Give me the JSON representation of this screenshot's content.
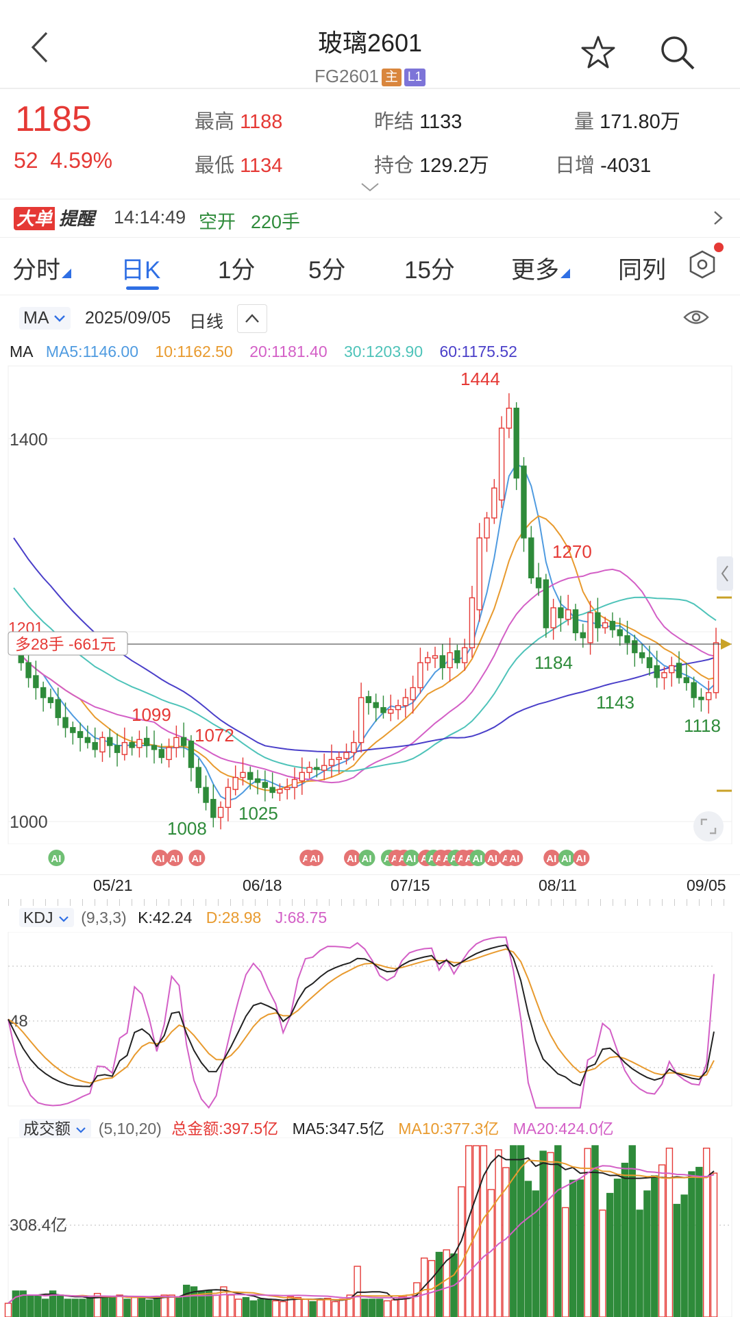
{
  "header": {
    "title": "玻璃2601",
    "code": "FG2601",
    "badge_main": "主",
    "badge_level": "L1"
  },
  "quote": {
    "price": "1185",
    "change": "52",
    "change_pct": "4.59%",
    "high_label": "最高",
    "high": "1188",
    "low_label": "最低",
    "low": "1134",
    "prev_settle_label": "昨结",
    "prev_settle": "1133",
    "open_interest_label": "持仓",
    "open_interest": "129.2万",
    "volume_label": "量",
    "volume": "171.80万",
    "daily_change_label": "日增",
    "daily_change": "-4031"
  },
  "alert": {
    "tag_a": "大单",
    "tag_b": "提醒",
    "time": "14:14:49",
    "action": "空开",
    "qty": "220手"
  },
  "tabs": [
    "分时",
    "日K",
    "1分",
    "5分",
    "15分",
    "更多",
    "同列"
  ],
  "active_tab": "日K",
  "kline_header": {
    "indicator": "MA",
    "date": "2025/09/05",
    "period": "日线"
  },
  "ma_legend": {
    "label": "MA",
    "ma5": "MA5:1146.00",
    "ma10": "10:1162.50",
    "ma20": "20:1181.40",
    "ma30": "30:1203.90",
    "ma60": "60:1175.52"
  },
  "colors": {
    "up": "#e53935",
    "down": "#2e8b3a",
    "ma5": "#4f9be0",
    "ma10": "#e89a2e",
    "ma20": "#d35fc6",
    "ma30": "#4ec3b9",
    "ma60": "#4a3fc9",
    "accent": "#2f6fe4"
  },
  "chart_data": [
    {
      "type": "candlestick",
      "title": "",
      "y_ticks": [
        "1400",
        "1200",
        "1000"
      ],
      "ylim": [
        990,
        1450
      ],
      "x_ticks": [
        "05/21",
        "06/18",
        "07/15",
        "08/11",
        "09/05"
      ],
      "annotations": {
        "peak": "1444",
        "p1270": "1270",
        "p1184": "1184",
        "p1143": "1143",
        "p1118": "1118",
        "p1099": "1099",
        "p1072": "1072",
        "p1008": "1008",
        "p1025": "1025",
        "p1201": "1201"
      },
      "position_label": "多28手 -661元",
      "closes": [
        1180,
        1165,
        1150,
        1140,
        1130,
        1125,
        1110,
        1100,
        1095,
        1090,
        1085,
        1078,
        1090,
        1082,
        1075,
        1085,
        1080,
        1088,
        1082,
        1078,
        1070,
        1080,
        1090,
        1082,
        1060,
        1040,
        1025,
        1010,
        1020,
        1040,
        1050,
        1055,
        1048,
        1045,
        1040,
        1035,
        1038,
        1040,
        1048,
        1055,
        1060,
        1058,
        1062,
        1068,
        1070,
        1075,
        1085,
        1130,
        1125,
        1120,
        1115,
        1118,
        1122,
        1130,
        1140,
        1165,
        1170,
        1172,
        1160,
        1175,
        1165,
        1180,
        1230,
        1290,
        1310,
        1340,
        1400,
        1420,
        1350,
        1290,
        1250,
        1240,
        1200,
        1220,
        1210,
        1218,
        1195,
        1190,
        1215,
        1200,
        1205,
        1198,
        1192,
        1185,
        1175,
        1170,
        1160,
        1150,
        1155,
        1162,
        1150,
        1145,
        1130,
        1128,
        1135,
        1185
      ]
    },
    {
      "type": "line",
      "title": "KDJ",
      "params": "(9,3,3)",
      "k_label": "K:42.24",
      "d_label": "D:28.98",
      "j_label": "J:68.75",
      "y_tick": "48"
    },
    {
      "type": "bar",
      "title": "成交额",
      "params": "(5,10,20)",
      "total_label": "总金额:397.5亿",
      "ma5_label": "MA5:347.5亿",
      "ma10_label": "MA10:377.3亿",
      "ma20_label": "MA20:424.0亿",
      "y_tick": "308.4亿"
    }
  ]
}
